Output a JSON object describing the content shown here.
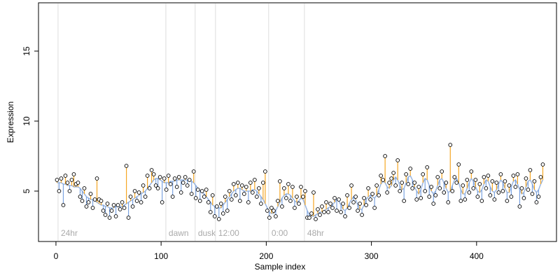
{
  "chart_data": {
    "type": "scatter",
    "xlabel": "Sample index",
    "ylabel": "Expression",
    "xlim": [
      -16.6,
      476
    ],
    "ylim": [
      1.4,
      18.45
    ],
    "xticks": [
      0,
      100,
      200,
      300,
      400
    ],
    "yticks": [
      5,
      10,
      15
    ],
    "up_color": "#f5a623",
    "down_color": "#7ba3e0",
    "annotations": [
      {
        "x": 2,
        "label": "24hr"
      },
      {
        "x": 104.5,
        "label": "dawn"
      },
      {
        "x": 132.4,
        "label": "dusk"
      },
      {
        "x": 151.7,
        "label": "12:00"
      },
      {
        "x": 202.3,
        "label": "0:00"
      },
      {
        "x": 236.3,
        "label": "48hr"
      }
    ],
    "x": [
      1,
      3,
      5,
      7,
      9,
      11,
      13,
      15,
      17,
      19,
      21,
      23,
      25,
      27,
      29,
      31,
      33,
      35,
      37,
      39,
      41,
      43,
      45,
      47,
      49,
      51,
      53,
      55,
      57,
      59,
      61,
      63,
      65,
      67,
      69,
      71,
      73,
      75,
      77,
      79,
      81,
      83,
      85,
      87,
      89,
      91,
      93,
      95,
      97,
      99,
      101,
      103,
      105,
      107,
      109,
      111,
      113,
      115,
      117,
      119,
      121,
      123,
      125,
      127,
      129,
      131,
      133,
      135,
      137,
      139,
      141,
      143,
      145,
      147,
      149,
      151,
      153,
      155,
      157,
      159,
      161,
      163,
      165,
      167,
      169,
      171,
      173,
      175,
      177,
      179,
      181,
      183,
      185,
      187,
      189,
      191,
      193,
      195,
      197,
      199,
      201,
      203,
      205,
      207,
      209,
      211,
      213,
      215,
      217,
      219,
      221,
      223,
      225,
      227,
      229,
      231,
      233,
      235,
      237,
      239,
      241,
      243,
      245,
      247,
      249,
      251,
      253,
      255,
      257,
      259,
      261,
      263,
      265,
      267,
      269,
      271,
      273,
      275,
      277,
      279,
      281,
      283,
      285,
      287,
      289,
      291,
      293,
      295,
      297,
      299,
      301,
      303,
      305,
      307,
      309,
      311,
      313,
      315,
      317,
      319,
      321,
      323,
      325,
      327,
      329,
      331,
      333,
      335,
      337,
      339,
      341,
      343,
      345,
      347,
      349,
      351,
      353,
      355,
      357,
      359,
      361,
      363,
      365,
      367,
      369,
      371,
      373,
      375,
      377,
      379,
      381,
      383,
      385,
      387,
      389,
      391,
      393,
      395,
      397,
      399,
      401,
      403,
      405,
      407,
      409,
      411,
      413,
      415,
      417,
      419,
      421,
      423,
      425,
      427,
      429,
      431,
      433,
      435,
      437,
      439,
      441,
      443,
      445,
      447,
      449,
      451,
      453,
      455,
      457,
      459,
      461,
      463
    ],
    "series": [
      {
        "color": "#000000",
        "values": [
          5.8,
          5.0,
          5.9,
          4.0,
          6.1,
          5.6,
          5.0,
          5.8,
          6.2,
          5.5,
          5.6,
          4.6,
          4.3,
          5.2,
          3.9,
          4.2,
          4.8,
          3.8,
          4.4,
          5.9,
          4.4,
          4.3,
          3.6,
          3.3,
          4.1,
          3.1,
          3.6,
          4.0,
          3.2,
          4.0,
          3.7,
          4.2,
          3.8,
          6.8,
          3.1,
          4.6,
          3.9,
          5.0,
          4.3,
          4.9,
          4.2,
          5.4,
          4.6,
          6.1,
          5.2,
          6.5,
          6.2,
          5.4,
          5.2,
          6.0,
          4.2,
          5.9,
          5.1,
          6.1,
          5.5,
          4.6,
          5.9,
          5.3,
          6.0,
          4.9,
          5.6,
          6.0,
          5.4,
          5.8,
          4.8,
          6.4,
          4.5,
          5.1,
          4.3,
          5.0,
          4.6,
          5.1,
          4.2,
          3.5,
          4.7,
          3.2,
          3.9,
          3.0,
          4.1,
          3.4,
          4.6,
          3.6,
          5.0,
          4.4,
          5.5,
          4.7,
          5.6,
          4.3,
          5.4,
          4.8,
          5.3,
          4.2,
          5.6,
          4.9,
          5.8,
          4.6,
          5.2,
          4.1,
          5.6,
          6.4,
          3.6,
          3.1,
          3.8,
          3.6,
          3.2,
          4.3,
          5.7,
          3.9,
          5.2,
          4.5,
          5.5,
          4.3,
          5.3,
          3.8,
          4.6,
          4.1,
          5.3,
          4.6,
          5.0,
          3.1,
          3.1,
          3.4,
          4.9,
          3.0,
          3.7,
          3.3,
          3.9,
          3.5,
          4.2,
          3.5,
          4.1,
          3.8,
          4.5,
          3.6,
          4.4,
          3.5,
          4.1,
          3.2,
          4.7,
          3.8,
          5.4,
          4.2,
          4.6,
          3.6,
          4.1,
          3.3,
          4.5,
          4.0,
          5.2,
          4.4,
          4.8,
          3.8,
          5.4,
          4.7,
          6.1,
          5.8,
          7.5,
          4.9,
          5.6,
          5.9,
          6.3,
          5.4,
          7.2,
          5.0,
          5.6,
          4.3,
          6.2,
          5.5,
          6.6,
          5.2,
          5.6,
          4.4,
          5.3,
          4.5,
          6.2,
          5.0,
          6.7,
          4.6,
          5.3,
          4.1,
          4.7,
          6.0,
          5.2,
          6.4,
          4.9,
          5.6,
          4.2,
          8.3,
          5.0,
          6.0,
          5.6,
          6.9,
          4.3,
          5.4,
          4.4,
          5.8,
          4.9,
          6.4,
          5.2,
          5.8,
          4.6,
          5.5,
          4.3,
          6.0,
          5.2,
          6.1,
          4.7,
          5.7,
          4.4,
          5.6,
          4.9,
          6.2,
          5.0,
          5.7,
          4.3,
          5.4,
          4.6,
          6.1,
          5.3,
          6.2,
          3.9,
          5.2,
          4.5,
          5.9,
          5.1,
          6.5,
          4.8,
          5.7,
          4.2,
          4.6,
          6.0,
          6.9
        ]
      },
      {
        "color": "#9ab5de",
        "values": [
          5.6,
          5.6,
          5.6,
          5.5,
          5.5,
          5.4,
          5.4,
          5.4,
          5.3,
          5.3,
          5.3,
          5.2,
          5.0,
          4.8,
          4.6,
          4.5,
          4.4,
          4.4,
          4.3,
          4.2,
          4.1,
          4.0,
          4.0,
          3.9,
          3.9,
          3.8,
          3.8,
          3.8,
          3.9,
          3.9,
          3.9,
          3.9,
          4.0,
          4.1,
          4.2,
          4.3,
          4.4,
          4.5,
          4.6,
          4.7,
          4.8,
          4.9,
          5.0,
          5.2,
          5.4,
          5.6,
          5.8,
          5.9,
          5.9,
          5.8,
          5.7,
          5.6,
          5.6,
          5.6,
          5.7,
          5.7,
          5.7,
          5.8,
          5.8,
          5.8,
          5.8,
          5.8,
          5.8,
          5.8,
          5.7,
          5.6,
          5.4,
          5.2,
          5.0,
          4.9,
          4.8,
          4.6,
          4.4,
          4.2,
          4.0,
          3.9,
          3.8,
          3.8,
          3.8,
          4.0,
          4.2,
          4.4,
          4.6,
          4.8,
          5.0,
          5.1,
          5.2,
          5.2,
          5.1,
          5.0,
          5.0,
          5.0,
          5.0,
          5.1,
          5.1,
          5.0,
          4.8,
          4.6,
          4.4,
          4.1,
          3.8,
          3.5,
          3.4,
          3.4,
          3.6,
          3.9,
          4.2,
          4.5,
          4.7,
          4.8,
          4.8,
          4.7,
          4.5,
          4.3,
          4.2,
          4.3,
          4.5,
          4.4,
          4.0,
          3.6,
          3.3,
          3.2,
          3.2,
          3.3,
          3.4,
          3.5,
          3.5,
          3.6,
          3.7,
          3.8,
          3.9,
          4.0,
          4.2,
          4.4,
          4.3,
          4.0,
          3.7,
          3.6,
          3.8,
          4.1,
          4.4,
          4.6,
          4.4,
          4.0,
          3.7,
          3.7,
          4.0,
          4.4,
          4.6,
          4.7,
          4.6,
          4.5,
          4.7,
          5.1,
          5.5,
          5.7,
          5.6,
          5.3,
          5.2,
          5.4,
          5.8,
          6.0,
          5.8,
          5.4,
          5.1,
          5.2,
          5.6,
          6.0,
          6.1,
          5.8,
          5.3,
          5.0,
          4.8,
          5.1,
          5.6,
          5.9,
          5.8,
          5.4,
          5.0,
          4.8,
          5.0,
          5.4,
          5.8,
          5.9,
          5.6,
          5.2,
          4.9,
          5.0,
          5.4,
          5.8,
          5.9,
          5.6,
          5.1,
          4.8,
          4.8,
          5.2,
          5.6,
          5.9,
          5.7,
          5.3,
          5.0,
          4.9,
          5.1,
          5.5,
          5.8,
          5.7,
          5.3,
          5.0,
          4.9,
          5.1,
          5.5,
          5.8,
          5.6,
          5.2,
          4.9,
          4.9,
          5.3,
          5.7,
          5.8,
          5.5,
          5.1,
          4.8,
          4.9,
          5.3,
          5.7,
          5.8,
          5.5,
          5.1,
          4.9,
          5.1,
          5.5,
          5.8
        ]
      }
    ]
  }
}
